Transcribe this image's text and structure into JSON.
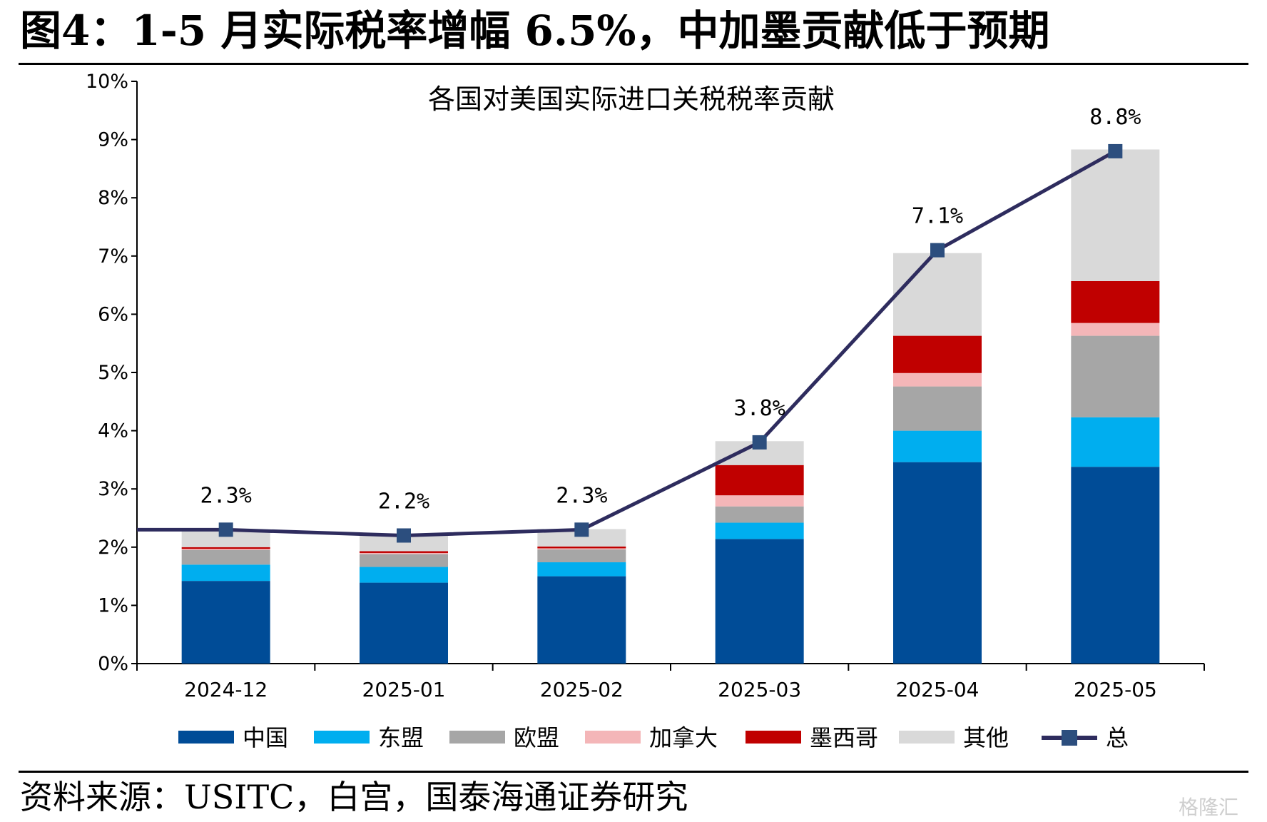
{
  "figure": {
    "title": "图4：1-5 月实际税率增幅 6.5%，中加墨贡献低于预期",
    "source": "资料来源：USITC，白宫，国泰海通证券研究",
    "watermark": "格隆汇"
  },
  "chart_data": {
    "type": "bar",
    "stacked": true,
    "title": "各国对美国实际进口关税税率贡献",
    "categories": [
      "2024-12",
      "2025-01",
      "2025-02",
      "2025-03",
      "2025-04",
      "2025-05"
    ],
    "ylim": [
      0,
      10
    ],
    "yticks": [
      "0%",
      "1%",
      "2%",
      "3%",
      "4%",
      "5%",
      "6%",
      "7%",
      "8%",
      "9%",
      "10%"
    ],
    "legend_position": "bottom",
    "series": [
      {
        "name": "中国",
        "color": "#004C97",
        "values": [
          1.42,
          1.39,
          1.5,
          2.14,
          3.46,
          3.38
        ]
      },
      {
        "name": "东盟",
        "color": "#00AEEF",
        "values": [
          0.28,
          0.27,
          0.24,
          0.28,
          0.54,
          0.85
        ]
      },
      {
        "name": "欧盟",
        "color": "#A6A6A6",
        "values": [
          0.25,
          0.22,
          0.22,
          0.28,
          0.76,
          1.4
        ]
      },
      {
        "name": "加拿大",
        "color": "#F4B6B8",
        "values": [
          0.02,
          0.02,
          0.02,
          0.19,
          0.23,
          0.22
        ]
      },
      {
        "name": "墨西哥",
        "color": "#C00000",
        "values": [
          0.03,
          0.03,
          0.03,
          0.52,
          0.64,
          0.72
        ]
      },
      {
        "name": "其他",
        "color": "#D9D9D9",
        "values": [
          0.3,
          0.27,
          0.3,
          0.41,
          1.42,
          2.26
        ]
      }
    ],
    "line": {
      "name": "总",
      "color": "#2E2C5E",
      "marker_color": "#2C4E7E",
      "values": [
        2.3,
        2.2,
        2.3,
        3.8,
        7.1,
        8.8
      ],
      "labels": [
        "2.3%",
        "2.2%",
        "2.3%",
        "3.8%",
        "7.1%",
        "8.8%"
      ],
      "start_value": 2.3
    }
  }
}
